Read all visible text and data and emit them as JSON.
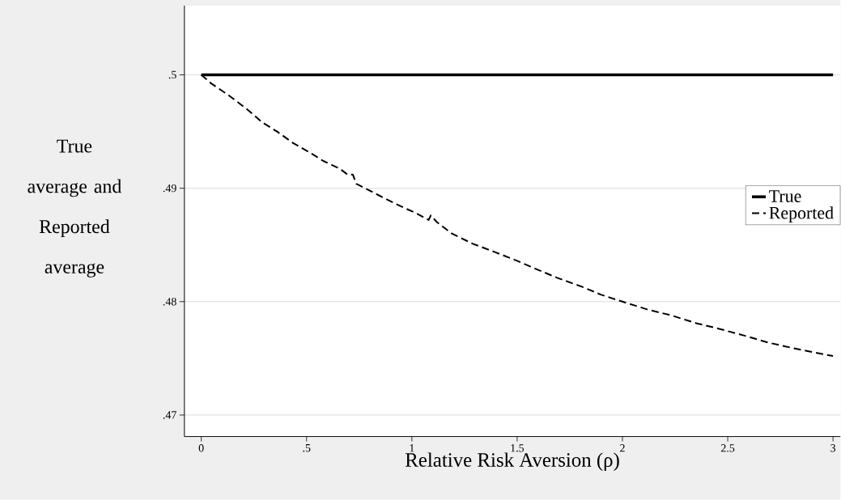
{
  "chart_data": {
    "type": "line",
    "xlabel": "Relative Risk Aversion (ρ)",
    "ylabel": "True average and Reported average",
    "xlim": [
      -0.08,
      3.035
    ],
    "ylim": [
      0.4681,
      0.5061
    ],
    "xticks": [
      0,
      {
        "value": 0.5,
        "label": ".5"
      },
      1,
      1.5,
      2,
      2.5,
      3
    ],
    "yticks": [
      {
        "value": 0.47,
        "label": ".47"
      },
      {
        "value": 0.48,
        "label": ".48"
      },
      {
        "value": 0.49,
        "label": ".49"
      },
      {
        "value": 0.5,
        "label": ".5"
      }
    ],
    "grid": "y",
    "legend": "right",
    "marker": "none",
    "series": [
      {
        "name": "True",
        "color": "#000000",
        "line_style": "solid",
        "x": [
          0,
          3
        ],
        "values": [
          0.5,
          0.5
        ]
      },
      {
        "name": "Reported",
        "color": "#000000",
        "line_style": "dashed",
        "x": [
          0,
          0.05,
          0.13,
          0.215,
          0.29,
          0.36,
          0.435,
          0.52,
          0.58,
          0.66,
          0.695,
          0.72,
          0.736,
          0.83,
          0.925,
          1.02,
          1.08,
          1.09,
          1.12,
          1.19,
          1.29,
          1.39,
          1.5,
          1.6,
          1.69,
          1.81,
          1.9,
          2.0,
          2.12,
          2.23,
          2.35,
          2.46,
          2.58,
          2.69,
          2.81,
          2.89,
          3.0
        ],
        "values": [
          0.5,
          0.4992,
          0.4982,
          0.497,
          0.4958,
          0.495,
          0.494,
          0.4931,
          0.4924,
          0.4917,
          0.4912,
          0.4912,
          0.4904,
          0.4895,
          0.4886,
          0.4878,
          0.4872,
          0.4876,
          0.487,
          0.486,
          0.4851,
          0.4844,
          0.4836,
          0.4828,
          0.4821,
          0.4813,
          0.4806,
          0.48,
          0.4793,
          0.4788,
          0.4781,
          0.4776,
          0.477,
          0.4764,
          0.4759,
          0.4756,
          0.4752
        ]
      }
    ]
  }
}
